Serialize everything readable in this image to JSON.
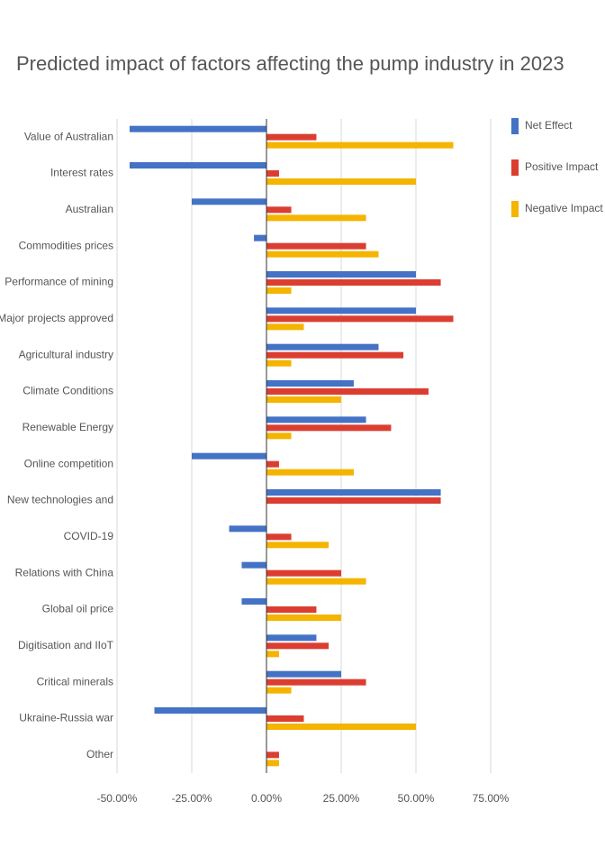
{
  "chart_data": {
    "type": "hbar",
    "title": "Predicted impact of factors affecting the pump industry in 2023",
    "categories": [
      "Value of Australian",
      "Interest rates",
      "Australian",
      "Commodities prices",
      "Performance of mining",
      "Major projects approved",
      "Agricultural industry",
      "Climate Conditions",
      "Renewable Energy",
      "Online competition",
      "New technologies and",
      "COVID-19",
      "Relations with China",
      "Global oil price",
      "Digitisation and IIoT",
      "Critical minerals",
      "Ukraine-Russia war",
      "Other"
    ],
    "series": [
      {
        "name": "Net Effect",
        "color": "#4472c4",
        "values": [
          -45.8,
          -45.8,
          -25,
          -4.2,
          50,
          50,
          37.5,
          29.2,
          33.3,
          -25,
          58.3,
          -12.5,
          -8.3,
          -8.3,
          16.7,
          25,
          -37.5,
          0
        ]
      },
      {
        "name": "Positive Impact",
        "color": "#db3e31",
        "values": [
          16.7,
          4.2,
          8.3,
          33.3,
          58.3,
          62.5,
          45.8,
          54.2,
          41.7,
          4.2,
          58.3,
          8.3,
          25,
          16.7,
          20.8,
          33.3,
          12.5,
          4.2
        ]
      },
      {
        "name": "Negative Impact",
        "color": "#f4b400",
        "values": [
          62.5,
          50,
          33.3,
          37.5,
          8.3,
          12.5,
          8.3,
          25,
          8.3,
          29.2,
          0,
          20.8,
          33.3,
          25,
          4.2,
          8.3,
          50,
          4.2
        ]
      }
    ],
    "xlim": [
      -50,
      75
    ],
    "xticks": [
      {
        "value": -50,
        "label": "-50.00%"
      },
      {
        "value": -25,
        "label": "-25.00%"
      },
      {
        "value": 0,
        "label": "0.00%"
      },
      {
        "value": 25,
        "label": "25.00%"
      },
      {
        "value": 50,
        "label": "50.00%"
      },
      {
        "value": 75,
        "label": "75.00%"
      }
    ],
    "grid": true,
    "legend": "right"
  }
}
